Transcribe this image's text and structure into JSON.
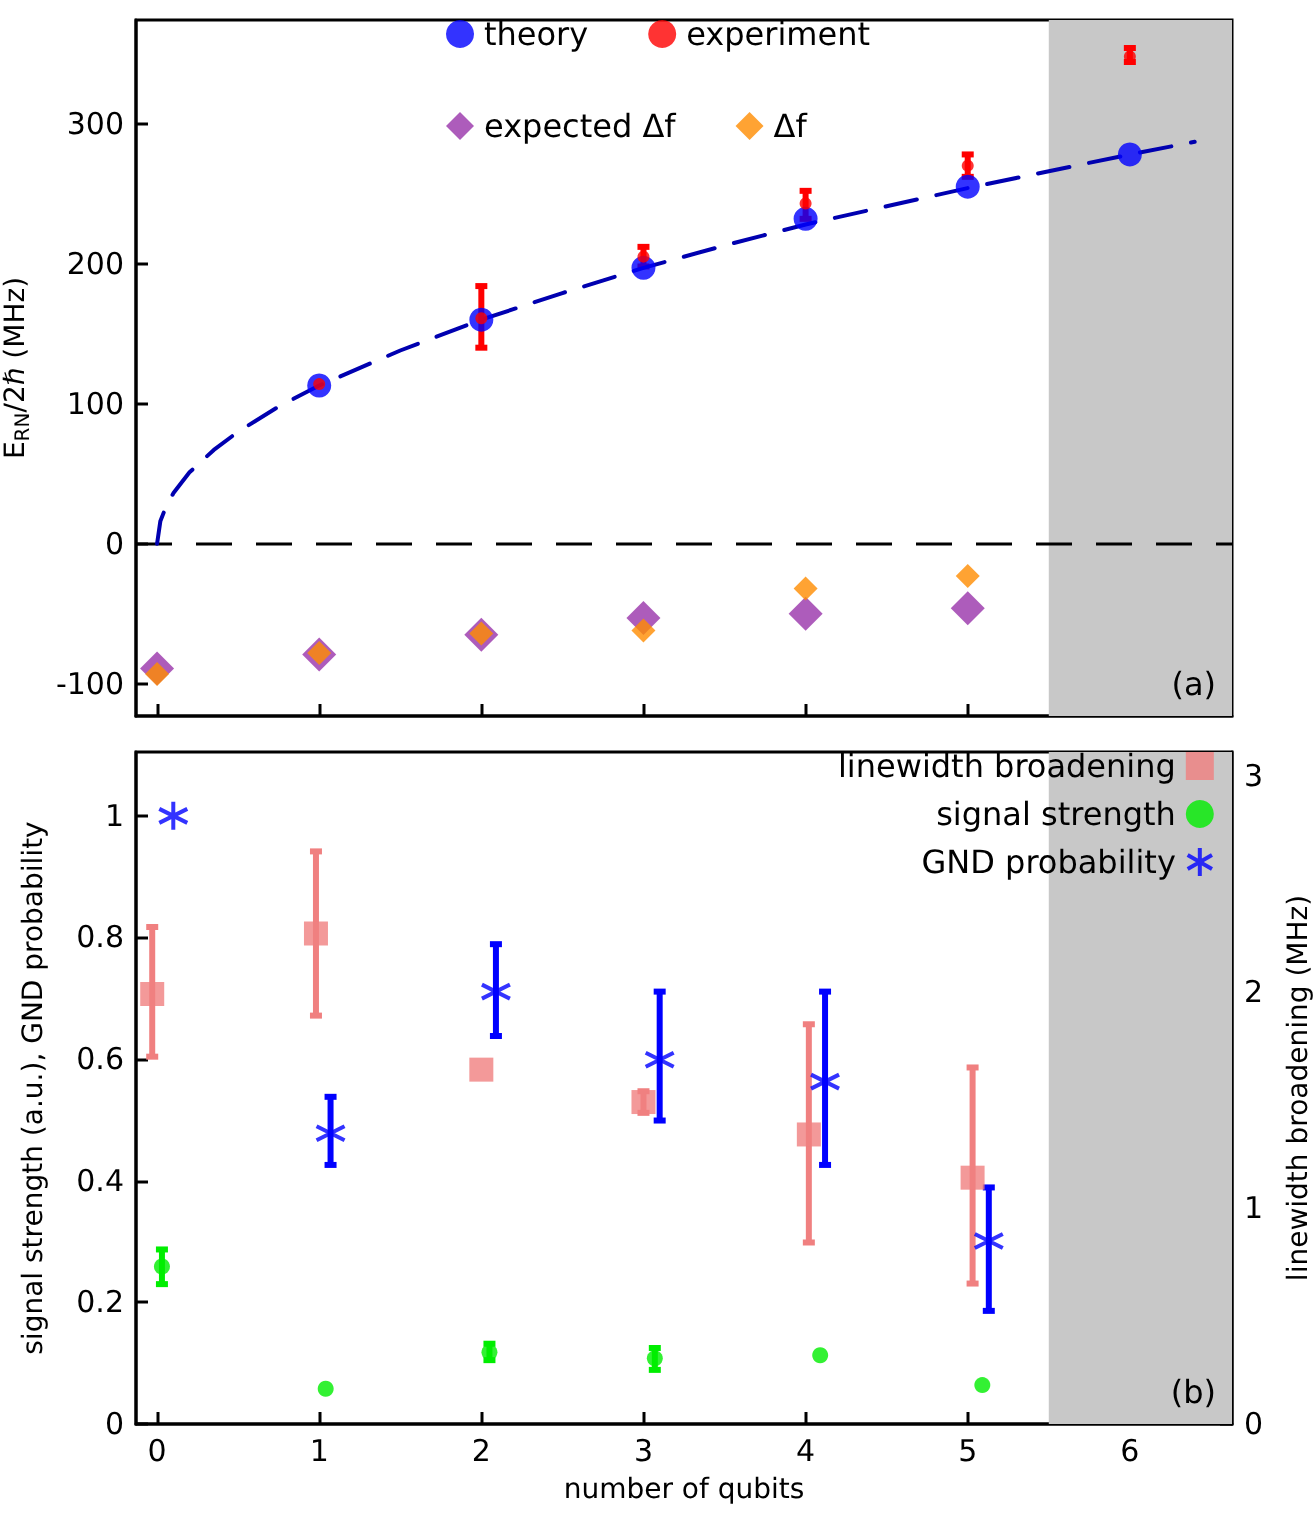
{
  "chart_data": [
    {
      "type": "scatter",
      "ylabel": "E$_{RN}$/2ℏ (MHz)",
      "xlim": [
        -0.13,
        6.63
      ],
      "xticks": [
        0,
        1,
        2,
        3,
        4,
        5,
        6
      ],
      "ylim": [
        -123,
        374
      ],
      "yticks": [
        -100,
        0,
        100,
        200,
        300
      ],
      "tick_labels": "y",
      "grid": false,
      "legend": "top",
      "annotations": [
        "(a)"
      ],
      "ref_lines": [
        {
          "axis": "y",
          "value": 0,
          "color": "#000000",
          "line_style": "dashed"
        }
      ],
      "bands": [
        {
          "axis": "x",
          "from": 5.5,
          "to": 6.63,
          "color": "#c8c8c8"
        }
      ],
      "series": [
        {
          "type": "line",
          "color": "#0000b0",
          "marker": "none",
          "line_style": "dashed",
          "x": [
            0,
            0.02,
            0.05,
            0.1,
            0.2,
            0.35,
            0.5,
            0.75,
            1,
            1.5,
            2,
            2.5,
            3,
            3.5,
            4,
            4.5,
            5,
            5.5,
            6,
            6.4
          ],
          "values": [
            0,
            16,
            25,
            36,
            51,
            67,
            80,
            98,
            113,
            138,
            160,
            179,
            197,
            213,
            228,
            241,
            254,
            266,
            278,
            287
          ]
        },
        {
          "name": "theory",
          "color": "#0000ff",
          "marker": "circle",
          "x": [
            1,
            2,
            3,
            4,
            5,
            6
          ],
          "values": [
            113,
            160,
            197,
            232,
            255,
            278
          ]
        },
        {
          "name": "experiment",
          "color": "#ff0000",
          "marker": "circle",
          "x": [
            1,
            2,
            3,
            4,
            5,
            6
          ],
          "values": [
            114,
            161,
            205,
            243,
            270,
            348
          ],
          "errors": [
            null,
            [
              140,
              184
            ],
            [
              198,
              212
            ],
            [
              232,
              252
            ],
            [
              262,
              278
            ],
            [
              344,
              354
            ]
          ]
        },
        {
          "name": "expected Δf",
          "color": "#9933aa",
          "marker": "diamond",
          "x": [
            0,
            1,
            2,
            3,
            4,
            5
          ],
          "values": [
            -89,
            -79,
            -65,
            -53,
            -50,
            -46
          ]
        },
        {
          "name": "Δf",
          "color": "#ff8c00",
          "marker": "diamond",
          "x": [
            0,
            1,
            2,
            3,
            4,
            5
          ],
          "values": [
            -93,
            -78,
            -64,
            -62,
            -32,
            -23
          ]
        }
      ]
    },
    {
      "type": "scatter",
      "xlabel": "number of qubits",
      "ylabel": "signal strength (a.u.), GND probability",
      "y2label": "linewidth broadening (MHz)",
      "xlim": [
        -0.13,
        6.63
      ],
      "xticks": [
        0,
        1,
        2,
        3,
        4,
        5,
        6
      ],
      "ylim": [
        0,
        1.105
      ],
      "yticks": [
        0,
        0.2,
        0.4,
        0.6,
        0.8,
        1.0
      ],
      "y2lim": [
        0,
        3.11
      ],
      "y2ticks": [
        0,
        {
          "value": 0.5,
          "label": null
        },
        1,
        {
          "value": 1.5,
          "label": null
        },
        2,
        {
          "value": 2.5,
          "label": null
        },
        3
      ],
      "grid": false,
      "legend": "top right",
      "annotations": [
        "(b)"
      ],
      "bands": [
        {
          "axis": "x",
          "from": 5.5,
          "to": 6.63,
          "color": "#c8c8c8"
        }
      ],
      "series": [
        {
          "name": "linewidth broadening",
          "axis": "y2",
          "color": "#f08080",
          "marker": "square",
          "x": [
            -0.03,
            0.98,
            2,
            3,
            4.02,
            5.03
          ],
          "values": [
            1.99,
            2.27,
            1.64,
            1.49,
            1.34,
            1.14
          ],
          "errors": [
            [
              1.7,
              2.3
            ],
            [
              1.89,
              2.65
            ],
            null,
            [
              1.44,
              1.54
            ],
            [
              0.84,
              1.85
            ],
            [
              0.65,
              1.65
            ]
          ]
        },
        {
          "name": "signal strength",
          "color": "#00ee00",
          "marker": "circle",
          "x": [
            0.03,
            1.04,
            2.05,
            3.07,
            4.09,
            5.09
          ],
          "values": [
            0.259,
            0.058,
            0.118,
            0.108,
            0.113,
            0.064
          ],
          "errors": [
            [
              0.23,
              0.287
            ],
            null,
            [
              0.105,
              0.132
            ],
            [
              0.089,
              0.125
            ],
            null,
            null
          ]
        },
        {
          "name": "GND probability",
          "color": "#0000ff",
          "marker": "cross",
          "x": [
            0.1,
            1.07,
            2.09,
            3.1,
            4.12,
            5.13
          ],
          "values": [
            1.0,
            0.478,
            0.711,
            0.599,
            0.563,
            0.301
          ],
          "errors": [
            null,
            [
              0.426,
              0.538
            ],
            [
              0.638,
              0.789
            ],
            [
              0.499,
              0.711
            ],
            [
              0.426,
              0.711
            ],
            [
              0.186,
              0.389
            ]
          ]
        }
      ]
    }
  ]
}
